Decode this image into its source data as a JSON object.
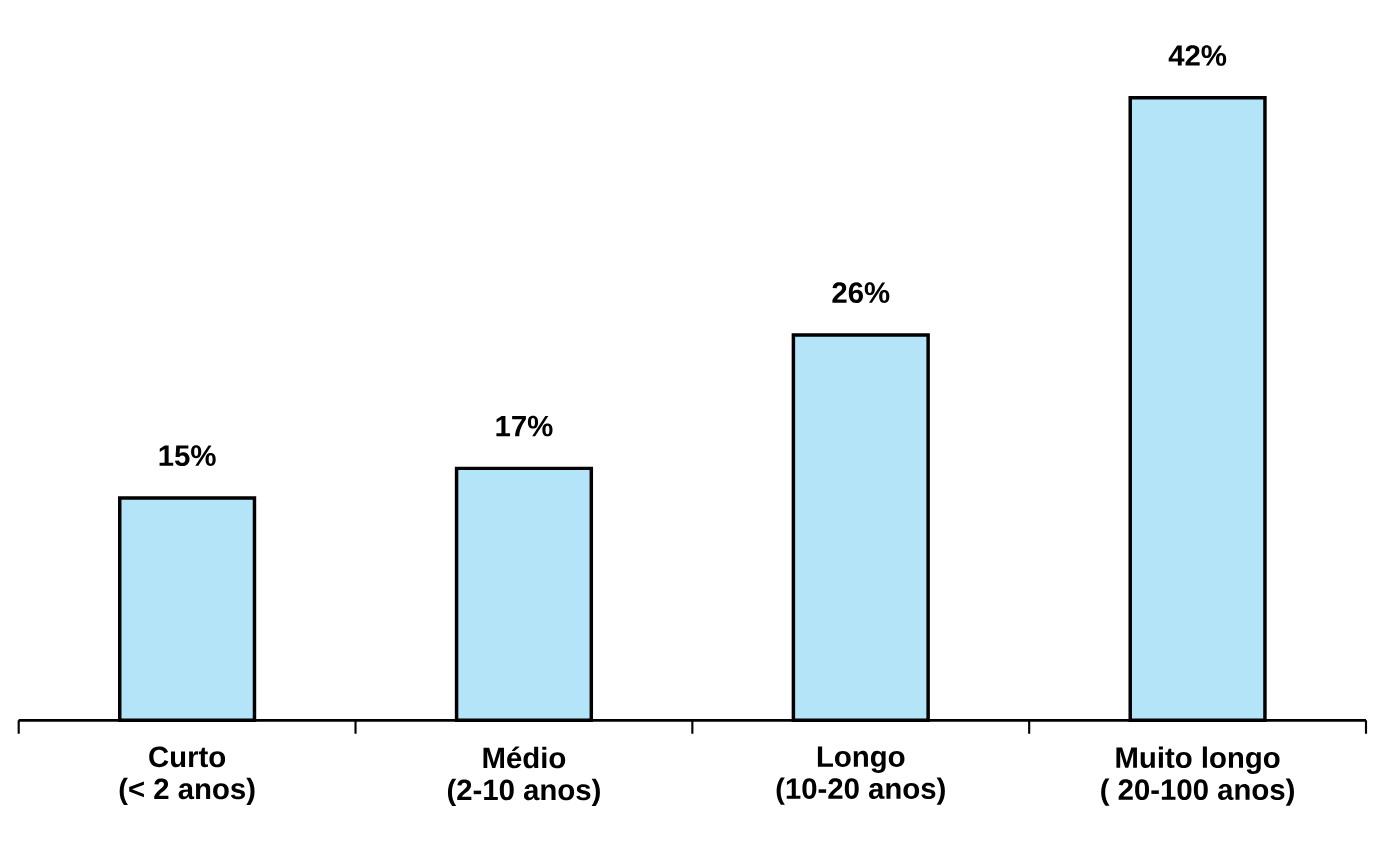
{
  "chart_data": {
    "type": "bar",
    "categories": [
      "Curto\n(< 2 anos)",
      "Médio\n(2-10 anos)",
      "Longo\n(10-20 anos)",
      "Muito longo\n( 20-100 anos)"
    ],
    "values": [
      15,
      17,
      26,
      42
    ],
    "value_labels": [
      "15%",
      "17%",
      "26%",
      "42%"
    ],
    "color": "#b4e4f8"
  }
}
